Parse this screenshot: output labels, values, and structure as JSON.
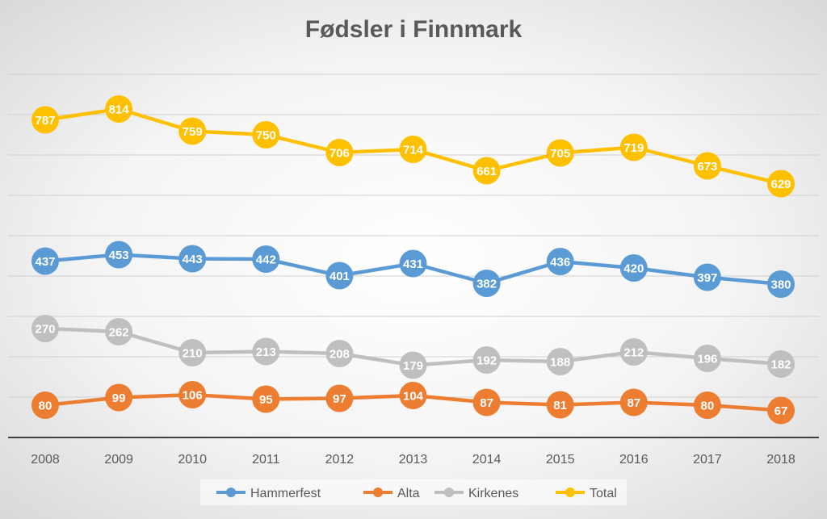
{
  "chart_data": {
    "type": "line",
    "title": "Fødsler i Finnmark",
    "xlabel": "",
    "ylabel": "",
    "categories": [
      "2008",
      "2009",
      "2010",
      "2011",
      "2012",
      "2013",
      "2014",
      "2015",
      "2016",
      "2017",
      "2018"
    ],
    "ylim": [
      0,
      900
    ],
    "grid": true,
    "y_axis_labels_shown": false,
    "legend_position": "bottom",
    "series": [
      {
        "name": "Hammerfest",
        "color": "#5b9bd5",
        "values": [
          437,
          453,
          443,
          442,
          401,
          431,
          382,
          436,
          420,
          397,
          380
        ]
      },
      {
        "name": "Alta",
        "color": "#ed7d31",
        "values": [
          80,
          99,
          106,
          95,
          97,
          104,
          87,
          81,
          87,
          80,
          67
        ]
      },
      {
        "name": "Kirkenes",
        "color": "#bfbfbf",
        "values": [
          270,
          262,
          210,
          213,
          208,
          179,
          192,
          188,
          212,
          196,
          182
        ]
      },
      {
        "name": "Total",
        "color": "#ffc000",
        "values": [
          787,
          814,
          759,
          750,
          706,
          714,
          661,
          705,
          719,
          673,
          629
        ]
      }
    ]
  }
}
